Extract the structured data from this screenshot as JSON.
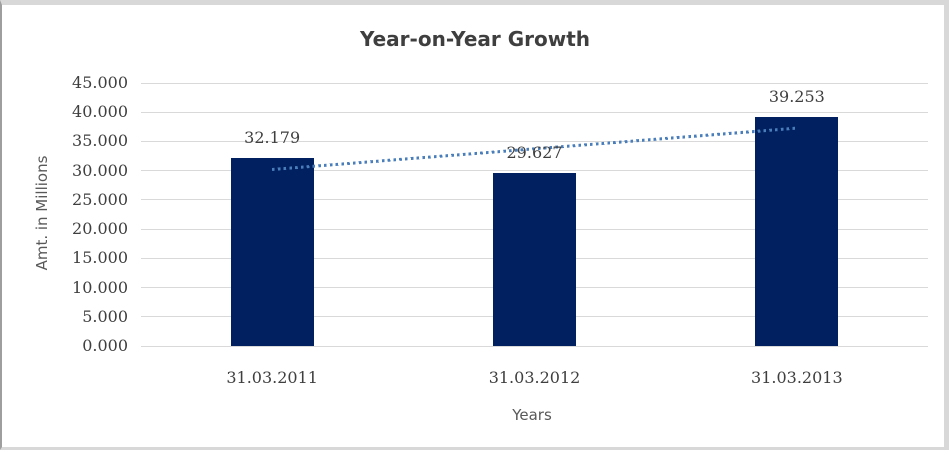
{
  "chart_data": {
    "type": "bar",
    "title": "Year-on-Year Growth",
    "xlabel": "Years",
    "ylabel": "Amt. in Millions",
    "categories": [
      "31.03.2011",
      "31.03.2012",
      "31.03.2013"
    ],
    "values": [
      32.179,
      29.627,
      39.253
    ],
    "data_labels": [
      "32.179",
      "29.627",
      "39.253"
    ],
    "ylim": [
      0,
      45
    ],
    "ytick_step": 5,
    "ytick_labels": [
      "0.000",
      "5.000",
      "10.000",
      "15.000",
      "20.000",
      "25.000",
      "30.000",
      "35.000",
      "40.000",
      "45.000"
    ],
    "grid": true,
    "legend_position": "none",
    "bar_color": "#002060",
    "gridline_color": "#d9d9d9",
    "trendline": {
      "type": "linear",
      "line_style": "dotted",
      "color": "#4a7ebb",
      "endpoints_values": [
        30.149,
        37.223
      ]
    }
  }
}
